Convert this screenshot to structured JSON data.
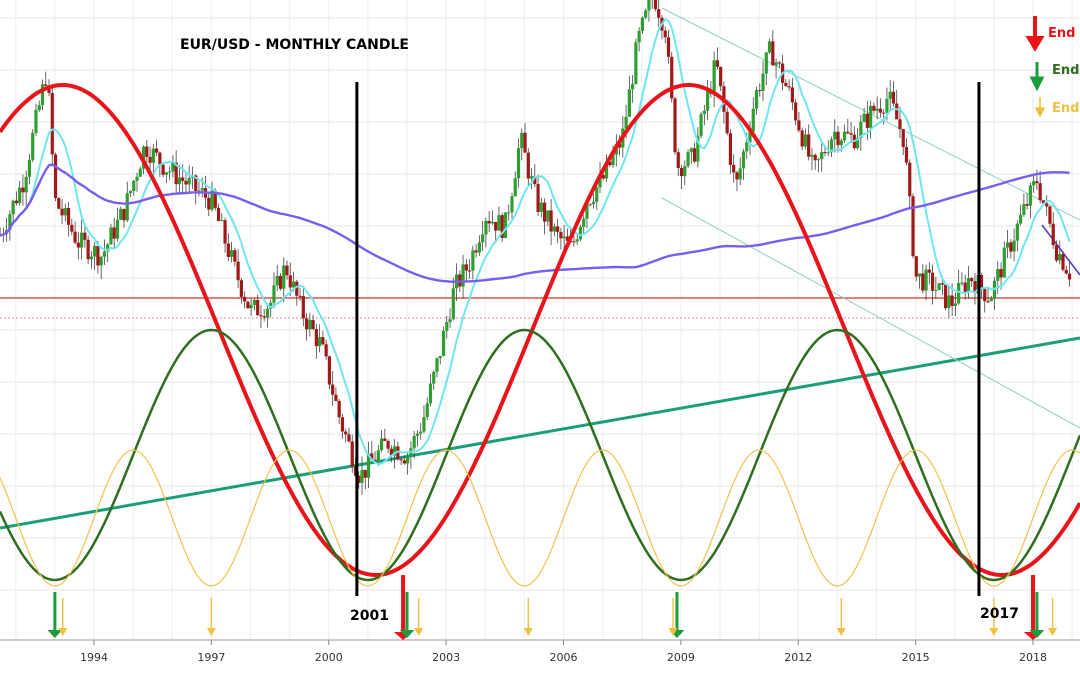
{
  "chart_data": {
    "type": "candlestick",
    "title": "EUR/USD - MONTHLY CANDLE",
    "x_tick_labels": [
      "1994",
      "1997",
      "2000",
      "2003",
      "2006",
      "2009",
      "2012",
      "2015",
      "2018"
    ],
    "x_range": [
      1991.5,
      2019.1
    ],
    "grid": true,
    "legend_placement": "top-right",
    "legend": [
      {
        "label": "End",
        "color": "#e8141a"
      },
      {
        "label": "End",
        "color": "#2e7d1e"
      },
      {
        "label": "End",
        "color": "#f0c040"
      }
    ],
    "annotations": [
      {
        "text": "2001",
        "x": 2001.0
      },
      {
        "text": "2017",
        "x": 2016.9
      }
    ],
    "price_path": [
      [
        1991.6,
        0.42
      ],
      [
        1992.2,
        0.58
      ],
      [
        1992.8,
        0.9
      ],
      [
        1993.0,
        0.52
      ],
      [
        1993.6,
        0.4
      ],
      [
        1994.2,
        0.36
      ],
      [
        1994.8,
        0.5
      ],
      [
        1995.3,
        0.68
      ],
      [
        1995.8,
        0.62
      ],
      [
        1996.5,
        0.56
      ],
      [
        1997.0,
        0.52
      ],
      [
        1997.6,
        0.32
      ],
      [
        1998.0,
        0.2
      ],
      [
        1998.5,
        0.22
      ],
      [
        1998.9,
        0.33
      ],
      [
        1999.3,
        0.2
      ],
      [
        1999.8,
        0.1
      ],
      [
        2000.3,
        -0.12
      ],
      [
        2000.8,
        -0.28
      ],
      [
        2001.0,
        -0.25
      ],
      [
        2001.5,
        -0.18
      ],
      [
        2002.0,
        -0.22
      ],
      [
        2002.4,
        -0.12
      ],
      [
        2002.8,
        0.06
      ],
      [
        2003.2,
        0.26
      ],
      [
        2003.6,
        0.34
      ],
      [
        2004.0,
        0.48
      ],
      [
        2004.5,
        0.44
      ],
      [
        2004.9,
        0.7
      ],
      [
        2005.3,
        0.52
      ],
      [
        2005.8,
        0.42
      ],
      [
        2006.2,
        0.38
      ],
      [
        2006.6,
        0.52
      ],
      [
        2007.0,
        0.58
      ],
      [
        2007.5,
        0.7
      ],
      [
        2007.9,
        0.98
      ],
      [
        2008.3,
        1.12
      ],
      [
        2008.6,
        1.02
      ],
      [
        2008.9,
        0.62
      ],
      [
        2009.3,
        0.64
      ],
      [
        2009.9,
        0.92
      ],
      [
        2010.4,
        0.55
      ],
      [
        2010.9,
        0.82
      ],
      [
        2011.3,
        0.96
      ],
      [
        2011.8,
        0.82
      ],
      [
        2012.4,
        0.6
      ],
      [
        2012.9,
        0.72
      ],
      [
        2013.4,
        0.7
      ],
      [
        2013.9,
        0.78
      ],
      [
        2014.3,
        0.82
      ],
      [
        2014.7,
        0.7
      ],
      [
        2015.0,
        0.3
      ],
      [
        2015.4,
        0.28
      ],
      [
        2015.9,
        0.22
      ],
      [
        2016.4,
        0.3
      ],
      [
        2016.9,
        0.24
      ],
      [
        2017.3,
        0.36
      ],
      [
        2017.8,
        0.5
      ],
      [
        2018.1,
        0.58
      ],
      [
        2018.6,
        0.38
      ],
      [
        2019.0,
        0.3
      ]
    ],
    "series": [
      {
        "cycle_years": 16.0,
        "trough": 2001.2,
        "color": "#e8141a",
        "width": 4
      },
      {
        "cycle_years": 8.0,
        "trough": 2001.0,
        "color": "#2e6e1e",
        "width": 2.5
      },
      {
        "cycle_years": 4.0,
        "trough": 2001.0,
        "color": "#f2c14e",
        "width": 1.2
      }
    ],
    "end_markers": {
      "red": [
        2001.9,
        2018.0
      ],
      "green": [
        1993.0,
        2002.0,
        2008.9,
        2018.1
      ],
      "yellow": [
        1993.2,
        1997.0,
        2002.3,
        2005.1,
        2008.8,
        2013.1,
        2017.0,
        2018.5
      ]
    }
  }
}
